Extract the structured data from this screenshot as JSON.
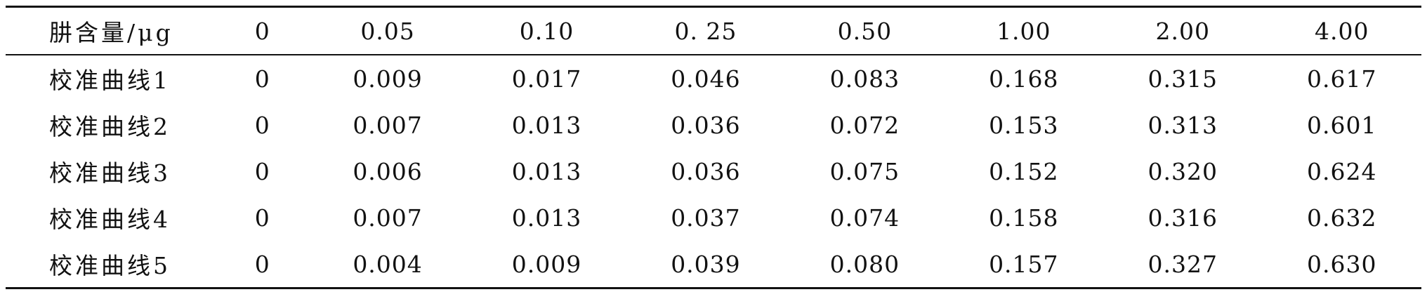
{
  "table": {
    "headers": [
      "肼含量/μg",
      "0",
      "0.05",
      "0.10",
      "0. 25",
      "0.50",
      "1.00",
      "2.00",
      "4.00"
    ],
    "rows": [
      [
        "校准曲线1",
        "0",
        "0.009",
        "0.017",
        "0.046",
        "0.083",
        "0.168",
        "0.315",
        "0.617"
      ],
      [
        "校准曲线2",
        "0",
        "0.007",
        "0.013",
        "0.036",
        "0.072",
        "0.153",
        "0.313",
        "0.601"
      ],
      [
        "校准曲线3",
        "0",
        "0.006",
        "0.013",
        "0.036",
        "0.075",
        "0.152",
        "0.320",
        "0.624"
      ],
      [
        "校准曲线4",
        "0",
        "0.007",
        "0.013",
        "0.037",
        "0.074",
        "0.158",
        "0.316",
        "0.632"
      ],
      [
        "校准曲线5",
        "0",
        "0.004",
        "0.009",
        "0.039",
        "0.080",
        "0.157",
        "0.327",
        "0.630"
      ]
    ]
  }
}
